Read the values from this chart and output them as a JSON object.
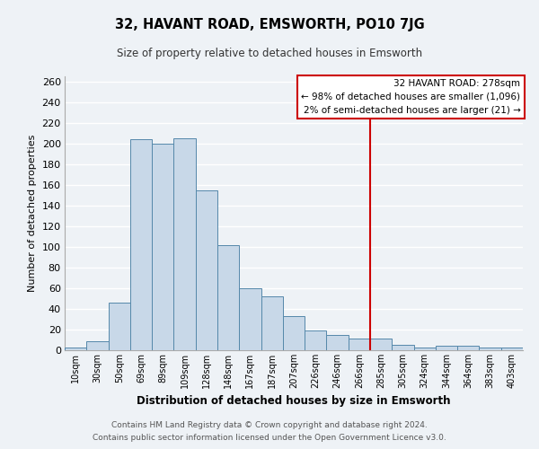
{
  "title": "32, HAVANT ROAD, EMSWORTH, PO10 7JG",
  "subtitle": "Size of property relative to detached houses in Emsworth",
  "xlabel": "Distribution of detached houses by size in Emsworth",
  "ylabel": "Number of detached properties",
  "bar_labels": [
    "10sqm",
    "30sqm",
    "50sqm",
    "69sqm",
    "89sqm",
    "109sqm",
    "128sqm",
    "148sqm",
    "167sqm",
    "187sqm",
    "207sqm",
    "226sqm",
    "246sqm",
    "266sqm",
    "285sqm",
    "305sqm",
    "324sqm",
    "344sqm",
    "364sqm",
    "383sqm",
    "403sqm"
  ],
  "bar_values": [
    3,
    9,
    46,
    204,
    200,
    205,
    155,
    102,
    60,
    52,
    33,
    19,
    15,
    11,
    11,
    5,
    3,
    4,
    4,
    3,
    3
  ],
  "bar_color": "#c8d8e8",
  "bar_edge_color": "#5588aa",
  "vline_color": "#cc0000",
  "vline_index": 14,
  "ylim": [
    0,
    265
  ],
  "yticks": [
    0,
    20,
    40,
    60,
    80,
    100,
    120,
    140,
    160,
    180,
    200,
    220,
    240,
    260
  ],
  "annotation_title": "32 HAVANT ROAD: 278sqm",
  "annotation_line1": "← 98% of detached houses are smaller (1,096)",
  "annotation_line2": "2% of semi-detached houses are larger (21) →",
  "annotation_box_color": "#cc0000",
  "footer_line1": "Contains HM Land Registry data © Crown copyright and database right 2024.",
  "footer_line2": "Contains public sector information licensed under the Open Government Licence v3.0.",
  "background_color": "#eef2f6",
  "grid_color": "#ffffff",
  "spine_color": "#aaaaaa"
}
